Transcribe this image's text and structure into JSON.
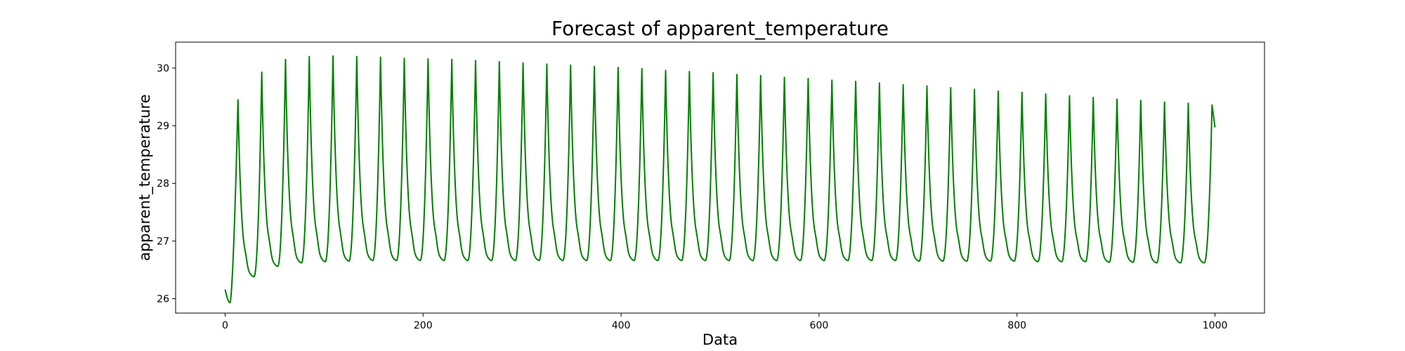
{
  "chart_data": {
    "type": "line",
    "title": "Forecast of apparent_temperature",
    "xlabel": "Data",
    "ylabel": "apparent_temperature",
    "xlim": [
      -50,
      1050
    ],
    "ylim": [
      25.75,
      30.45
    ],
    "xticks": [
      0,
      200,
      400,
      600,
      800,
      1000
    ],
    "yticks": [
      26,
      27,
      28,
      29,
      30
    ],
    "grid": false,
    "legend": "none",
    "series": [
      {
        "color": "#008000",
        "x_range": [
          0,
          1000
        ],
        "period": 24,
        "peak_offset": 13,
        "peaks": [
          [
            13,
            29.45
          ],
          [
            37,
            29.93
          ],
          [
            61,
            30.15
          ],
          [
            85,
            30.2
          ],
          [
            109,
            30.21
          ],
          [
            133,
            30.2
          ],
          [
            157,
            30.19
          ],
          [
            181,
            30.17
          ],
          [
            205,
            30.16
          ],
          [
            229,
            30.15
          ],
          [
            253,
            30.13
          ],
          [
            277,
            30.11
          ],
          [
            301,
            30.09
          ],
          [
            325,
            30.07
          ],
          [
            349,
            30.05
          ],
          [
            373,
            30.03
          ],
          [
            397,
            30.01
          ],
          [
            421,
            29.99
          ],
          [
            445,
            29.96
          ],
          [
            469,
            29.94
          ],
          [
            493,
            29.92
          ],
          [
            517,
            29.89
          ],
          [
            541,
            29.87
          ],
          [
            565,
            29.84
          ],
          [
            589,
            29.82
          ],
          [
            613,
            29.79
          ],
          [
            637,
            29.77
          ],
          [
            661,
            29.74
          ],
          [
            685,
            29.71
          ],
          [
            709,
            29.69
          ],
          [
            733,
            29.66
          ],
          [
            757,
            29.63
          ],
          [
            781,
            29.6
          ],
          [
            805,
            29.58
          ],
          [
            829,
            29.55
          ],
          [
            853,
            29.52
          ],
          [
            877,
            29.49
          ],
          [
            901,
            29.46
          ],
          [
            925,
            29.44
          ],
          [
            949,
            29.41
          ],
          [
            973,
            29.39
          ],
          [
            997,
            29.36
          ]
        ],
        "troughs": [
          [
            5,
            25.93
          ],
          [
            29,
            26.38
          ],
          [
            53,
            26.56
          ],
          [
            77,
            26.62
          ],
          [
            101,
            26.64
          ],
          [
            125,
            26.65
          ],
          [
            149,
            26.66
          ],
          [
            173,
            26.66
          ],
          [
            197,
            26.66
          ],
          [
            221,
            26.66
          ],
          [
            245,
            26.66
          ],
          [
            269,
            26.66
          ],
          [
            293,
            26.66
          ],
          [
            317,
            26.66
          ],
          [
            341,
            26.66
          ],
          [
            365,
            26.66
          ],
          [
            389,
            26.66
          ],
          [
            413,
            26.66
          ],
          [
            437,
            26.66
          ],
          [
            461,
            26.66
          ],
          [
            485,
            26.66
          ],
          [
            509,
            26.66
          ],
          [
            533,
            26.66
          ],
          [
            557,
            26.66
          ],
          [
            581,
            26.66
          ],
          [
            605,
            26.66
          ],
          [
            629,
            26.66
          ],
          [
            653,
            26.66
          ],
          [
            677,
            26.66
          ],
          [
            701,
            26.65
          ],
          [
            725,
            26.65
          ],
          [
            749,
            26.65
          ],
          [
            773,
            26.65
          ],
          [
            797,
            26.65
          ],
          [
            821,
            26.64
          ],
          [
            845,
            26.64
          ],
          [
            869,
            26.64
          ],
          [
            893,
            26.63
          ],
          [
            917,
            26.63
          ],
          [
            941,
            26.62
          ],
          [
            965,
            26.62
          ],
          [
            989,
            26.62
          ]
        ],
        "start": [
          0,
          26.16
        ],
        "end": [
          1000,
          28.97
        ]
      }
    ]
  }
}
